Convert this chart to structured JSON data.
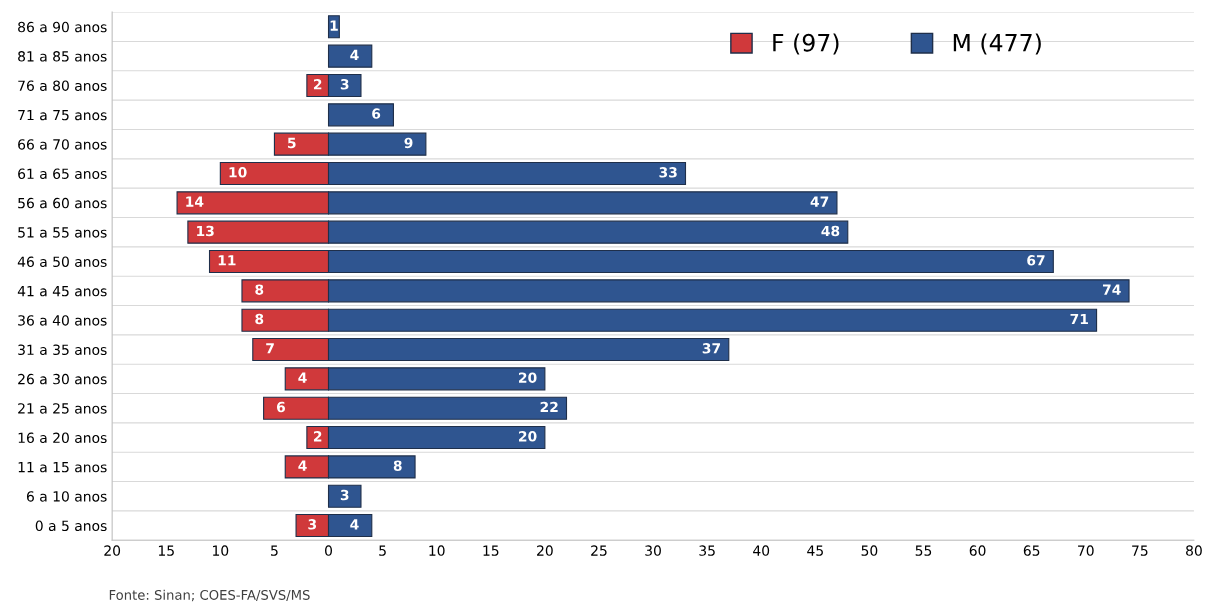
{
  "chart_data": {
    "type": "bar",
    "orientation": "horizontal",
    "categories": [
      "86 a 90 anos",
      "81 a 85 anos",
      "76 a 80 anos",
      "71 a 75 anos",
      "66 a 70 anos",
      "61 a 65 anos",
      "56 a 60 anos",
      "51 a 55 anos",
      "46 a 50 anos",
      "41 a 45 anos",
      "36 a 40 anos",
      "31 a 35 anos",
      "26 a 30 anos",
      "21 a 25 anos",
      "16 a 20 anos",
      "11 a 15 anos",
      "6 a 10 anos",
      "0 a 5 anos"
    ],
    "series": [
      {
        "name": "F (97)",
        "color": "#d0393b",
        "values": [
          null,
          null,
          2,
          null,
          5,
          10,
          14,
          13,
          11,
          8,
          8,
          7,
          4,
          6,
          2,
          4,
          null,
          3
        ],
        "base": [
          null,
          null,
          -2,
          null,
          -5,
          -10,
          -14,
          -13,
          -11,
          -8,
          -8,
          -7,
          -4,
          -6,
          -2,
          -4,
          null,
          -3
        ],
        "value_labels": [
          null,
          null,
          "2",
          null,
          "5",
          "10",
          "14",
          "13",
          "11",
          "8",
          "8",
          "7",
          "4",
          "6",
          "2",
          "4",
          null,
          "3"
        ]
      },
      {
        "name": "M (477)",
        "color": "#2f5590",
        "values": [
          1,
          4,
          3,
          6,
          9,
          33,
          47,
          48,
          67,
          74,
          71,
          37,
          20,
          22,
          20,
          8,
          3,
          4
        ],
        "value_labels": [
          "1",
          "4",
          "3",
          "6",
          "9",
          "33",
          "47",
          "48",
          "67",
          "74",
          "71",
          "37",
          "20",
          "22",
          "20",
          "8",
          "3",
          "4"
        ]
      }
    ],
    "xlim": [
      -20,
      80
    ],
    "xticks": [
      {
        "value": -20,
        "label": "20"
      },
      {
        "value": -15,
        "label": "15"
      },
      {
        "value": -10,
        "label": "10"
      },
      {
        "value": -5,
        "label": "5"
      },
      0,
      5,
      10,
      15,
      20,
      25,
      30,
      35,
      40,
      45,
      50,
      55,
      60,
      65,
      70,
      75,
      80
    ],
    "grid": "y",
    "legend": "top right",
    "annotations": [
      "Fonte: Sinan; COES-FA/SVS/MS"
    ]
  }
}
